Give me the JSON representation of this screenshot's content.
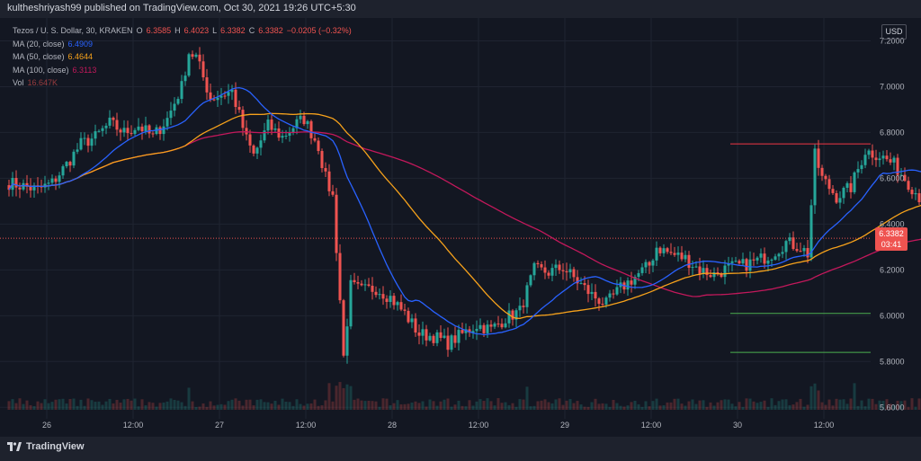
{
  "publisher_line": "kultheshriyash99 published on TradingView.com, Oct 30, 2021 19:26 UTC+5:30",
  "brand": "TradingView",
  "colors": {
    "background": "#131722",
    "up": "#26a69a",
    "down": "#ef5350",
    "ma20": "#2962ff",
    "ma50": "#f7a21b",
    "ma100": "#c2185b",
    "level_red": "#f23645",
    "level_green": "#4caf50"
  },
  "legend": {
    "title": "Tezos / U. S. Dollar, 30, KRAKEN",
    "o_label": "O",
    "o": "6.3585",
    "h_label": "H",
    "h": "6.4023",
    "l_label": "L",
    "l": "6.3382",
    "c_label": "C",
    "c": "6.3382",
    "change": "−0.0205 (−0.32%)",
    "ma20_label": "MA (20, close)",
    "ma20_value": "6.4909",
    "ma50_label": "MA (50, close)",
    "ma50_value": "6.4644",
    "ma100_label": "MA (100, close)",
    "ma100_value": "6.3113",
    "vol_label": "Vol",
    "vol_value": "16.647K"
  },
  "currency_button": "USD",
  "last_price": {
    "price": "6.3382",
    "countdown": "03:41"
  },
  "chart_data": {
    "type": "candlestick",
    "title": "Tezos / U. S. Dollar, 30, KRAKEN",
    "x_tick_labels": [
      "26",
      "12:00",
      "27",
      "12:00",
      "28",
      "12:00",
      "29",
      "12:00",
      "30",
      "12:00"
    ],
    "y_tick_labels": [
      "7.2000",
      "7.0000",
      "6.8000",
      "6.6000",
      "6.4000",
      "6.2000",
      "6.0000",
      "5.8000",
      "5.6000"
    ],
    "ylim": [
      5.55,
      7.3
    ],
    "candle_interval_hours": 0.5,
    "close_path": [
      [
        0,
        6.58
      ],
      [
        4,
        6.55
      ],
      [
        6,
        6.58
      ],
      [
        8,
        6.66
      ],
      [
        10,
        6.75
      ],
      [
        12,
        6.78
      ],
      [
        14,
        6.84
      ],
      [
        16,
        6.8
      ],
      [
        18,
        6.83
      ],
      [
        20,
        6.78
      ],
      [
        22,
        6.86
      ],
      [
        24,
        7.0
      ],
      [
        25,
        7.15
      ],
      [
        26,
        7.13
      ],
      [
        28,
        6.95
      ],
      [
        31,
        6.98
      ],
      [
        33,
        6.77
      ],
      [
        34,
        6.7
      ],
      [
        36,
        6.83
      ],
      [
        38,
        6.78
      ],
      [
        40,
        6.84
      ],
      [
        41,
        6.86
      ],
      [
        42,
        6.8
      ],
      [
        43,
        6.74
      ],
      [
        44,
        6.6
      ],
      [
        45,
        6.52
      ],
      [
        46,
        6.07
      ],
      [
        46.5,
        5.82
      ],
      [
        47.5,
        6.13
      ],
      [
        49,
        6.11
      ],
      [
        51,
        6.12
      ],
      [
        53,
        6.08
      ],
      [
        55,
        6.01
      ],
      [
        57,
        5.92
      ],
      [
        59,
        5.91
      ],
      [
        61,
        5.88
      ],
      [
        63,
        5.92
      ],
      [
        65,
        5.96
      ],
      [
        67,
        5.94
      ],
      [
        69,
        5.99
      ],
      [
        71,
        6.02
      ],
      [
        73,
        6.2
      ],
      [
        75,
        6.19
      ],
      [
        77,
        6.21
      ],
      [
        79,
        6.15
      ],
      [
        81,
        6.09
      ],
      [
        83,
        6.05
      ],
      [
        85,
        6.12
      ],
      [
        87,
        6.17
      ],
      [
        89,
        6.22
      ],
      [
        90,
        6.3
      ],
      [
        92,
        6.27
      ],
      [
        94,
        6.25
      ],
      [
        96,
        6.2
      ],
      [
        98,
        6.18
      ],
      [
        100,
        6.21
      ],
      [
        102,
        6.22
      ],
      [
        104,
        6.24
      ],
      [
        106,
        6.27
      ],
      [
        108,
        6.32
      ],
      [
        110,
        6.3
      ],
      [
        111,
        6.27
      ],
      [
        112,
        6.7
      ],
      [
        113,
        6.6
      ],
      [
        115,
        6.52
      ],
      [
        117,
        6.56
      ],
      [
        119,
        6.72
      ],
      [
        121,
        6.7
      ],
      [
        123,
        6.66
      ],
      [
        125,
        6.58
      ],
      [
        127,
        6.5
      ],
      [
        129,
        6.43
      ],
      [
        131,
        6.41
      ],
      [
        133,
        6.38
      ],
      [
        134,
        6.338
      ]
    ],
    "horizontal_levels": [
      {
        "price": 6.75,
        "color": "#f23645"
      },
      {
        "price": 6.01,
        "color": "#4caf50"
      },
      {
        "price": 5.84,
        "color": "#4caf50"
      }
    ],
    "last_price": 6.3382
  }
}
